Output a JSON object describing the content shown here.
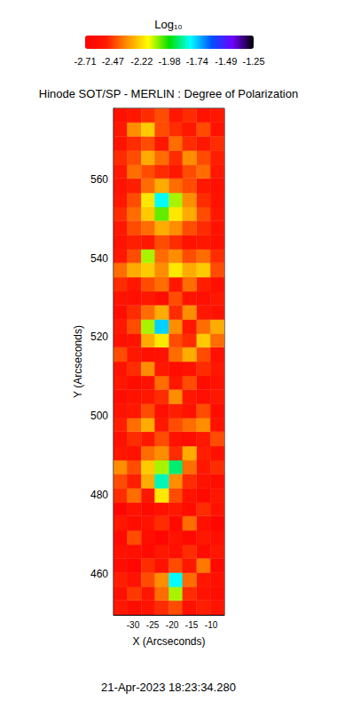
{
  "chart_data": {
    "type": "heatmap",
    "title": "Hinode SOT/SP - MERLIN : Degree of Polarization",
    "subtitle": "21-Apr-2023 18:23:34.280",
    "x_label": "X (Arcseconds)",
    "y_label": "Y (Arcseconds)",
    "xlim": [
      -35,
      -6.6
    ],
    "ylim": [
      449.6,
      578
    ],
    "xticks": [
      -30,
      -25,
      -20,
      -15,
      -10
    ],
    "yticks": [
      460,
      480,
      500,
      520,
      540,
      560
    ],
    "x": [
      -33.2,
      -29.7,
      -26.1,
      -22.6,
      -19.0,
      -15.5,
      -11.9,
      -8.4
    ],
    "y": [
      451.4,
      455.0,
      458.5,
      462.1,
      465.7,
      469.2,
      472.8,
      476.4,
      479.9,
      483.5,
      487.1,
      490.6,
      494.2,
      497.8,
      501.3,
      504.9,
      508.5,
      512.0,
      515.6,
      519.2,
      522.7,
      526.3,
      529.9,
      533.4,
      537.0,
      540.6,
      544.1,
      547.7,
      551.3,
      554.8,
      558.4,
      562.0,
      565.5,
      569.1,
      572.7,
      576.2
    ],
    "values": [
      [
        -2.55,
        -2.62,
        -2.58,
        -2.5,
        -2.45,
        -2.6,
        -2.52,
        -2.57
      ],
      [
        -2.6,
        -2.48,
        -2.55,
        -2.4,
        -2.1,
        -2.5,
        -2.58,
        -2.62
      ],
      [
        -2.52,
        -2.58,
        -2.45,
        -2.35,
        -1.8,
        -2.4,
        -2.55,
        -2.6
      ],
      [
        -2.62,
        -2.66,
        -2.5,
        -2.58,
        -2.45,
        -2.55,
        -2.38,
        -2.64
      ],
      [
        -2.58,
        -2.6,
        -2.64,
        -2.55,
        -2.6,
        -2.5,
        -2.62,
        -2.55
      ],
      [
        -2.64,
        -2.45,
        -2.62,
        -2.66,
        -2.58,
        -2.64,
        -2.55,
        -2.6
      ],
      [
        -2.55,
        -2.62,
        -2.58,
        -2.5,
        -2.64,
        -2.4,
        -2.6,
        -2.66
      ],
      [
        -2.66,
        -2.58,
        -2.64,
        -2.6,
        -2.55,
        -2.62,
        -2.5,
        -2.58
      ],
      [
        -2.5,
        -2.4,
        -2.55,
        -2.2,
        -2.45,
        -2.58,
        -2.64,
        -2.55
      ],
      [
        -2.45,
        -2.52,
        -2.3,
        -1.85,
        -2.35,
        -2.5,
        -2.58,
        -2.62
      ],
      [
        -2.35,
        -2.45,
        -2.25,
        -2.1,
        -1.9,
        -2.4,
        -2.55,
        -2.5
      ],
      [
        -2.55,
        -2.58,
        -2.4,
        -2.35,
        -2.5,
        -2.3,
        -2.52,
        -2.6
      ],
      [
        -2.6,
        -2.5,
        -2.55,
        -2.45,
        -2.58,
        -2.62,
        -2.55,
        -2.45
      ],
      [
        -2.52,
        -2.4,
        -2.3,
        -2.55,
        -2.45,
        -2.4,
        -2.35,
        -2.58
      ],
      [
        -2.58,
        -2.55,
        -2.45,
        -2.6,
        -2.52,
        -2.58,
        -2.45,
        -2.62
      ],
      [
        -2.62,
        -2.58,
        -2.55,
        -2.5,
        -2.35,
        -2.55,
        -2.6,
        -2.55
      ],
      [
        -2.55,
        -2.62,
        -2.58,
        -2.4,
        -2.55,
        -2.45,
        -2.62,
        -2.58
      ],
      [
        -2.58,
        -2.5,
        -2.35,
        -2.55,
        -2.62,
        -2.58,
        -2.5,
        -2.55
      ],
      [
        -2.45,
        -2.55,
        -2.6,
        -2.58,
        -2.4,
        -2.3,
        -2.45,
        -2.6
      ],
      [
        -2.6,
        -2.58,
        -2.3,
        -2.2,
        -2.45,
        -2.5,
        -2.25,
        -2.4
      ],
      [
        -2.55,
        -2.45,
        -2.1,
        -1.75,
        -2.35,
        -2.55,
        -2.4,
        -2.3
      ],
      [
        -2.62,
        -2.5,
        -2.4,
        -2.3,
        -2.5,
        -2.35,
        -2.55,
        -2.58
      ],
      [
        -2.58,
        -2.6,
        -2.55,
        -2.62,
        -2.45,
        -2.58,
        -2.6,
        -2.55
      ],
      [
        -2.5,
        -2.55,
        -2.45,
        -2.4,
        -2.55,
        -2.4,
        -2.52,
        -2.6
      ],
      [
        -2.4,
        -2.3,
        -2.25,
        -2.35,
        -2.2,
        -2.3,
        -2.25,
        -2.45
      ],
      [
        -2.55,
        -2.45,
        -2.1,
        -2.4,
        -2.35,
        -2.45,
        -2.4,
        -2.5
      ],
      [
        -2.58,
        -2.52,
        -2.55,
        -2.45,
        -2.5,
        -2.58,
        -2.55,
        -2.6
      ],
      [
        -2.55,
        -2.45,
        -2.4,
        -2.3,
        -2.35,
        -2.45,
        -2.5,
        -2.58
      ],
      [
        -2.5,
        -2.4,
        -2.25,
        -2.05,
        -2.2,
        -2.3,
        -2.45,
        -2.55
      ],
      [
        -2.55,
        -2.45,
        -2.2,
        -1.8,
        -2.1,
        -2.35,
        -2.5,
        -2.58
      ],
      [
        -2.58,
        -2.52,
        -2.4,
        -2.3,
        -2.4,
        -2.45,
        -2.55,
        -2.6
      ],
      [
        -2.55,
        -2.4,
        -2.45,
        -2.5,
        -2.55,
        -2.45,
        -2.4,
        -2.55
      ],
      [
        -2.5,
        -2.45,
        -2.3,
        -2.4,
        -2.5,
        -2.35,
        -2.45,
        -2.52
      ],
      [
        -2.58,
        -2.5,
        -2.45,
        -2.55,
        -2.4,
        -2.5,
        -2.55,
        -2.5
      ],
      [
        -2.55,
        -2.35,
        -2.25,
        -2.45,
        -2.5,
        -2.55,
        -2.45,
        -2.58
      ],
      [
        -2.6,
        -2.55,
        -2.5,
        -2.45,
        -2.55,
        -2.5,
        -2.58,
        -2.55
      ]
    ],
    "colorbar": {
      "title": "Log₁₀",
      "lim": [
        -2.71,
        -1.25
      ],
      "ticks": [
        -2.71,
        -2.47,
        -2.22,
        -1.98,
        -1.74,
        -1.49,
        -1.25
      ]
    }
  }
}
